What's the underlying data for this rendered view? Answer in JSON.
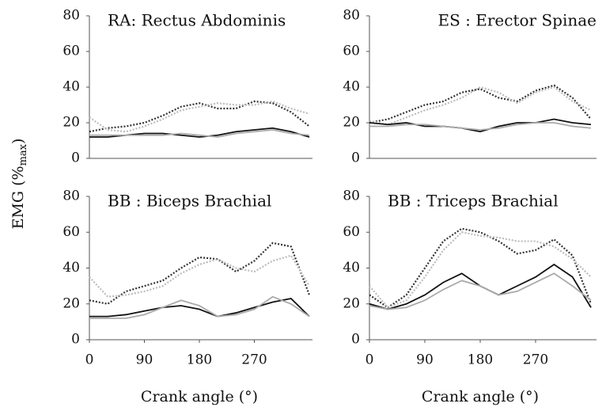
{
  "ylabel": [
    "EMG (%",
    "max",
    ")"
  ],
  "chart_data": [
    {
      "type": "line",
      "title": "RA: Rectus Abdominis",
      "title_align": "left",
      "x": [
        0,
        30,
        60,
        90,
        120,
        150,
        180,
        210,
        240,
        270,
        300,
        330,
        360
      ],
      "xlim": [
        0,
        360
      ],
      "ylim": [
        0,
        80
      ],
      "yticks": [
        0,
        20,
        40,
        60,
        80
      ],
      "series": [
        {
          "color": "#333333",
          "style": "dotted",
          "values": [
            15,
            17,
            18,
            20,
            24,
            29,
            31,
            28,
            28,
            32,
            31,
            26,
            18
          ]
        },
        {
          "color": "#bbbbbb",
          "style": "dotted",
          "values": [
            23,
            16,
            15,
            18,
            22,
            27,
            29,
            31,
            30,
            30,
            32,
            28,
            25
          ]
        },
        {
          "color": "#111111",
          "style": "solid",
          "values": [
            12,
            12,
            13,
            14,
            14,
            13,
            12,
            13,
            15,
            16,
            17,
            15,
            12
          ]
        },
        {
          "color": "#aaaaaa",
          "style": "solid",
          "values": [
            13,
            13,
            13,
            13,
            13,
            14,
            13,
            12,
            14,
            15,
            16,
            14,
            13
          ]
        }
      ]
    },
    {
      "type": "line",
      "title": "ES : Erector Spinae",
      "title_align": "right",
      "x": [
        0,
        30,
        60,
        90,
        120,
        150,
        180,
        210,
        240,
        270,
        300,
        330,
        360
      ],
      "xlim": [
        0,
        360
      ],
      "ylim": [
        0,
        80
      ],
      "yticks": [
        0,
        20,
        40,
        60,
        80
      ],
      "series": [
        {
          "color": "#333333",
          "style": "dotted",
          "values": [
            20,
            22,
            26,
            30,
            32,
            37,
            39,
            34,
            32,
            38,
            41,
            34,
            22
          ]
        },
        {
          "color": "#bbbbbb",
          "style": "dotted",
          "values": [
            21,
            19,
            23,
            27,
            30,
            34,
            40,
            37,
            31,
            37,
            40,
            32,
            27
          ]
        },
        {
          "color": "#111111",
          "style": "solid",
          "values": [
            20,
            19,
            20,
            18,
            18,
            17,
            15,
            18,
            20,
            20,
            22,
            20,
            19
          ]
        },
        {
          "color": "#aaaaaa",
          "style": "solid",
          "values": [
            18,
            18,
            19,
            19,
            18,
            17,
            16,
            17,
            19,
            20,
            20,
            18,
            17
          ]
        }
      ]
    },
    {
      "type": "line",
      "title": "BB : Biceps Brachial",
      "title_align": "left",
      "xlabel": "Crank angle (°)",
      "x": [
        0,
        30,
        60,
        90,
        120,
        150,
        180,
        210,
        240,
        270,
        300,
        330,
        360
      ],
      "xlim": [
        0,
        360
      ],
      "xticks": [
        0,
        90,
        180,
        270
      ],
      "ylim": [
        0,
        80
      ],
      "yticks": [
        0,
        20,
        40,
        60,
        80
      ],
      "series": [
        {
          "color": "#333333",
          "style": "dotted",
          "values": [
            22,
            20,
            27,
            30,
            33,
            40,
            46,
            45,
            38,
            44,
            54,
            52,
            25
          ]
        },
        {
          "color": "#bbbbbb",
          "style": "dotted",
          "values": [
            35,
            24,
            25,
            27,
            30,
            37,
            42,
            45,
            40,
            38,
            44,
            47,
            30
          ]
        },
        {
          "color": "#111111",
          "style": "solid",
          "values": [
            13,
            13,
            14,
            16,
            18,
            19,
            17,
            13,
            15,
            18,
            21,
            23,
            13
          ]
        },
        {
          "color": "#aaaaaa",
          "style": "solid",
          "values": [
            12,
            12,
            12,
            14,
            18,
            22,
            19,
            13,
            14,
            17,
            24,
            20,
            13
          ]
        }
      ]
    },
    {
      "type": "line",
      "title": "BB : Triceps Brachial",
      "title_align": "left",
      "xlabel": "Crank angle (°)",
      "x": [
        0,
        30,
        60,
        90,
        120,
        150,
        180,
        210,
        240,
        270,
        300,
        330,
        360
      ],
      "xlim": [
        0,
        360
      ],
      "xticks": [
        0,
        90,
        180,
        270
      ],
      "ylim": [
        0,
        80
      ],
      "yticks": [
        0,
        20,
        40,
        60,
        80
      ],
      "series": [
        {
          "color": "#333333",
          "style": "dotted",
          "values": [
            25,
            18,
            25,
            40,
            55,
            62,
            60,
            55,
            48,
            50,
            56,
            47,
            20
          ]
        },
        {
          "color": "#bbbbbb",
          "style": "dotted",
          "values": [
            30,
            18,
            22,
            35,
            50,
            60,
            58,
            57,
            55,
            55,
            52,
            45,
            35
          ]
        },
        {
          "color": "#111111",
          "style": "solid",
          "values": [
            20,
            17,
            20,
            25,
            32,
            37,
            30,
            25,
            30,
            35,
            42,
            35,
            18
          ]
        },
        {
          "color": "#aaaaaa",
          "style": "solid",
          "values": [
            19,
            17,
            18,
            22,
            28,
            33,
            30,
            25,
            27,
            32,
            37,
            30,
            22
          ]
        }
      ]
    }
  ]
}
